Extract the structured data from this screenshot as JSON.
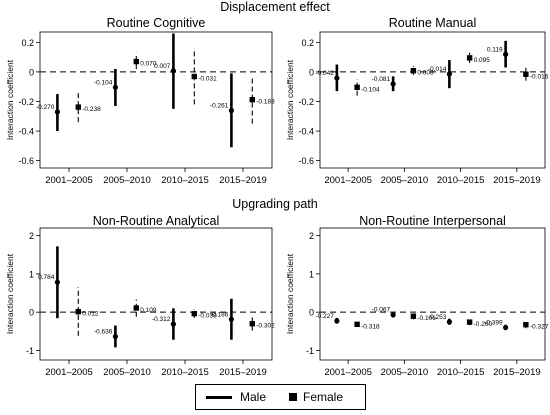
{
  "sections": [
    {
      "title": "Displacement effect"
    },
    {
      "title": "Upgrading path"
    }
  ],
  "legend": {
    "male": "Male",
    "female": "Female"
  },
  "chart_data": [
    {
      "type": "scatter",
      "title": "Routine Cognitive",
      "ylabel": "Interaction coefficient",
      "categories": [
        "2001–2005",
        "2005–2010",
        "2010–2015",
        "2015–2019"
      ],
      "ylim": [
        -0.65,
        0.27
      ],
      "yticks": [
        -0.6,
        -0.4,
        -0.2,
        0,
        0.2
      ],
      "ytick_labels": [
        "-0.6",
        "-0.4",
        "-0.2",
        "0",
        "0.2"
      ],
      "series": [
        {
          "name": "Male",
          "values": [
            -0.27,
            -0.104,
            0.007,
            -0.261
          ],
          "lo": [
            -0.4,
            -0.23,
            -0.25,
            -0.51
          ],
          "hi": [
            -0.15,
            0.02,
            0.26,
            -0.01
          ],
          "labels": [
            "-0.270",
            "-0.104",
            "0.007",
            "-0.261"
          ]
        },
        {
          "name": "Female",
          "values": [
            -0.238,
            0.07,
            -0.031,
            -0.188
          ],
          "lo": [
            -0.34,
            0.02,
            -0.22,
            -0.35
          ],
          "hi": [
            -0.13,
            0.13,
            0.16,
            -0.03
          ],
          "labels": [
            "-0.238",
            "0.070",
            "-0.031",
            "-0.188"
          ]
        }
      ]
    },
    {
      "type": "scatter",
      "title": "Routine Manual",
      "ylabel": "Interaction coefficient",
      "categories": [
        "2001–2005",
        "2005–2010",
        "2010–2015",
        "2015–2019"
      ],
      "ylim": [
        -0.65,
        0.27
      ],
      "yticks": [
        -0.6,
        -0.4,
        -0.2,
        0,
        0.2
      ],
      "ytick_labels": [
        "-0.6",
        "-0.4",
        "-0.2",
        "0",
        "0.2"
      ],
      "series": [
        {
          "name": "Male",
          "values": [
            -0.042,
            -0.081,
            -0.014,
            0.119
          ],
          "lo": [
            -0.13,
            -0.13,
            -0.11,
            0.03
          ],
          "hi": [
            0.05,
            -0.03,
            0.08,
            0.21
          ],
          "labels": [
            "-0.042",
            "-0.081",
            "-0.014",
            "0.119"
          ]
        },
        {
          "name": "Female",
          "values": [
            -0.104,
            0.008,
            0.095,
            -0.016
          ],
          "lo": [
            -0.16,
            -0.02,
            0.06,
            -0.06
          ],
          "hi": [
            -0.05,
            0.04,
            0.13,
            0.03
          ],
          "labels": [
            "-0.104",
            "0.008",
            "0.095",
            "-0.016"
          ]
        }
      ]
    },
    {
      "type": "scatter",
      "title": "Non-Routine Analytical",
      "ylabel": "Interaction coefficient",
      "categories": [
        "2001–2005",
        "2005–2010",
        "2010–2015",
        "2015–2019"
      ],
      "ylim": [
        -1.25,
        2.2
      ],
      "yticks": [
        -1,
        0,
        1,
        2
      ],
      "ytick_labels": [
        "-1",
        "0",
        "1",
        "2"
      ],
      "series": [
        {
          "name": "Male",
          "values": [
            0.784,
            -0.636,
            -0.312,
            -0.186
          ],
          "lo": [
            -0.16,
            -0.92,
            -0.72,
            -0.72
          ],
          "hi": [
            1.72,
            -0.35,
            0.1,
            0.35
          ],
          "labels": [
            "0.784",
            "-0.636",
            "-0.312",
            "-0.186"
          ]
        },
        {
          "name": "Female",
          "values": [
            0.012,
            0.109,
            -0.039,
            -0.302
          ],
          "lo": [
            -0.62,
            -0.12,
            -0.15,
            -0.48
          ],
          "hi": [
            0.65,
            0.33,
            0.07,
            -0.12
          ],
          "labels": [
            "0.012",
            "0.109",
            "-0.039",
            "-0.302"
          ]
        }
      ]
    },
    {
      "type": "scatter",
      "title": "Non-Routine Interpersonal",
      "ylabel": "Interaction coefficient",
      "categories": [
        "2001–2005",
        "2005–2010",
        "2010–2015",
        "2015–2019"
      ],
      "ylim": [
        -1.25,
        2.2
      ],
      "yticks": [
        -1,
        0,
        1,
        2
      ],
      "ytick_labels": [
        "-1",
        "0",
        "1",
        "2"
      ],
      "series": [
        {
          "name": "Male",
          "values": [
            -0.227,
            -0.067,
            -0.253,
            -0.399
          ],
          "lo": [
            -0.3,
            -0.14,
            -0.33,
            -0.47
          ],
          "hi": [
            -0.15,
            0.01,
            -0.17,
            -0.33
          ],
          "labels": [
            "-0.227",
            "-0.067",
            "-0.253",
            "-0.399"
          ]
        },
        {
          "name": "Female",
          "values": [
            -0.318,
            -0.106,
            -0.26,
            -0.327
          ],
          "lo": [
            -0.38,
            -0.19,
            -0.34,
            -0.42
          ],
          "hi": [
            -0.26,
            -0.02,
            -0.18,
            -0.23
          ],
          "labels": [
            "-0.318",
            "-0.106",
            "-0.260",
            "-0.327"
          ]
        }
      ]
    }
  ]
}
